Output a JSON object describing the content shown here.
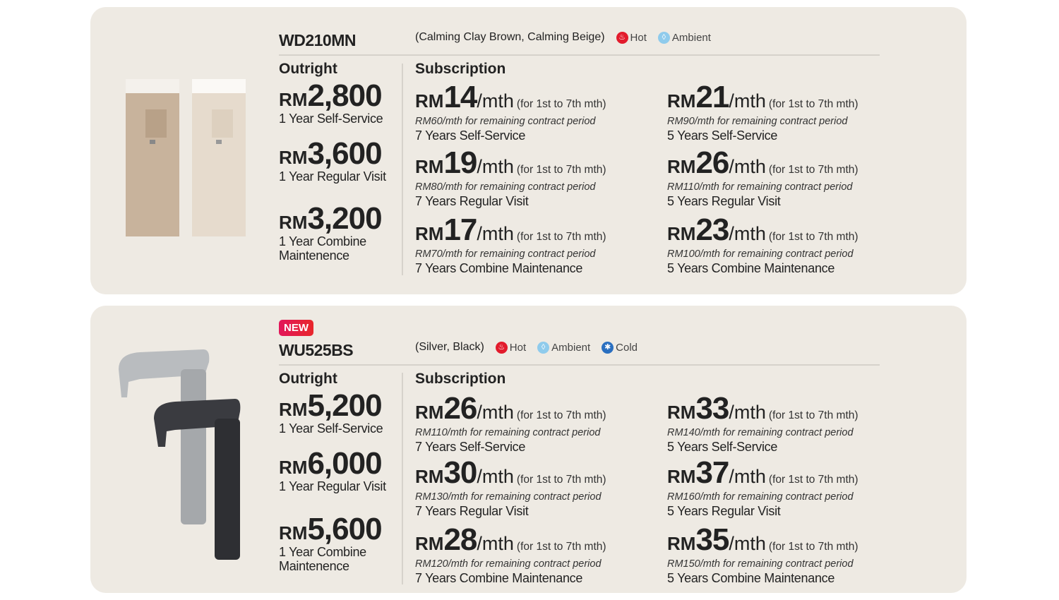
{
  "products": [
    {
      "badge": "",
      "model": "WD210MN",
      "colors": "(Calming Clay Brown, Calming Beige)",
      "features": [
        {
          "label": "Hot",
          "icon": "hot-icon",
          "color": "#e21b2c"
        },
        {
          "label": "Ambient",
          "icon": "water-drop-icon",
          "color": "#8fcbec"
        }
      ],
      "outright": {
        "label": "Outright",
        "items": [
          {
            "currency": "RM",
            "price": "2,800",
            "desc": "1 Year Self-Service"
          },
          {
            "currency": "RM",
            "price": "3,600",
            "desc": "1 Year  Regular Visit"
          },
          {
            "currency": "RM",
            "price": "3,200",
            "desc": "1 Year Combine Maintenence"
          }
        ]
      },
      "subscription": {
        "label": "Subscription",
        "columns": [
          [
            {
              "currency": "RM",
              "price": "14",
              "unit": "/mth",
              "note": "(for 1st to 7th mth)",
              "remaining": "RM60/mth for remaining contract period",
              "term": "7 Years Self-Service"
            },
            {
              "currency": "RM",
              "price": "19",
              "unit": "/mth",
              "note": "(for 1st to 7th mth)",
              "remaining": "RM80/mth for remaining contract period",
              "term": "7 Years Regular Visit"
            },
            {
              "currency": "RM",
              "price": "17",
              "unit": "/mth",
              "note": "(for 1st to 7th mth)",
              "remaining": "RM70/mth for remaining contract period",
              "term": "7 Years Combine Maintenance"
            }
          ],
          [
            {
              "currency": "RM",
              "price": "21",
              "unit": "/mth",
              "note": "(for 1st to 7th mth)",
              "remaining": "RM90/mth for remaining contract period",
              "term": "5 Years Self-Service"
            },
            {
              "currency": "RM",
              "price": "26",
              "unit": "/mth",
              "note": "(for 1st to 7th mth)",
              "remaining": "RM110/mth for remaining contract period",
              "term": "5 Years Regular Visit"
            },
            {
              "currency": "RM",
              "price": "23",
              "unit": "/mth",
              "note": "(for 1st to 7th mth)",
              "remaining": "RM100/mth for remaining contract period",
              "term": "5 Years Combine Maintenance"
            }
          ]
        ]
      }
    },
    {
      "badge": "NEW",
      "model": "WU525BS",
      "colors": "(Silver, Black)",
      "features": [
        {
          "label": "Hot",
          "icon": "hot-icon",
          "color": "#e21b2c"
        },
        {
          "label": "Ambient",
          "icon": "water-drop-icon",
          "color": "#8fcbec"
        },
        {
          "label": "Cold",
          "icon": "snowflake-icon",
          "color": "#2a6fc0"
        }
      ],
      "outright": {
        "label": "Outright",
        "items": [
          {
            "currency": "RM",
            "price": "5,200",
            "desc": "1 Year Self-Service"
          },
          {
            "currency": "RM",
            "price": "6,000",
            "desc": "1 Year  Regular Visit"
          },
          {
            "currency": "RM",
            "price": "5,600",
            "desc": "1 Year Combine Maintenence"
          }
        ]
      },
      "subscription": {
        "label": "Subscription",
        "columns": [
          [
            {
              "currency": "RM",
              "price": "26",
              "unit": "/mth",
              "note": "(for 1st to 7th mth)",
              "remaining": "RM110/mth for remaining contract period",
              "term": "7 Years Self-Service"
            },
            {
              "currency": "RM",
              "price": "30",
              "unit": "/mth",
              "note": "(for 1st to 7th mth)",
              "remaining": "RM130/mth for remaining contract period",
              "term": "7 Years Regular Visit"
            },
            {
              "currency": "RM",
              "price": "28",
              "unit": "/mth",
              "note": "(for 1st to 7th mth)",
              "remaining": "RM120/mth for remaining contract period",
              "term": "7 Years Combine Maintenance"
            }
          ],
          [
            {
              "currency": "RM",
              "price": "33",
              "unit": "/mth",
              "note": "(for 1st to 7th mth)",
              "remaining": "RM140/mth for remaining contract period",
              "term": "5 Years Self-Service"
            },
            {
              "currency": "RM",
              "price": "37",
              "unit": "/mth",
              "note": "(for 1st to 7th mth)",
              "remaining": "RM160/mth for remaining contract period",
              "term": "5 Years Regular Visit"
            },
            {
              "currency": "RM",
              "price": "35",
              "unit": "/mth",
              "note": "(for 1st to 7th mth)",
              "remaining": "RM150/mth for remaining contract period",
              "term": "5 Years Combine Maintenance"
            }
          ]
        ]
      }
    }
  ]
}
